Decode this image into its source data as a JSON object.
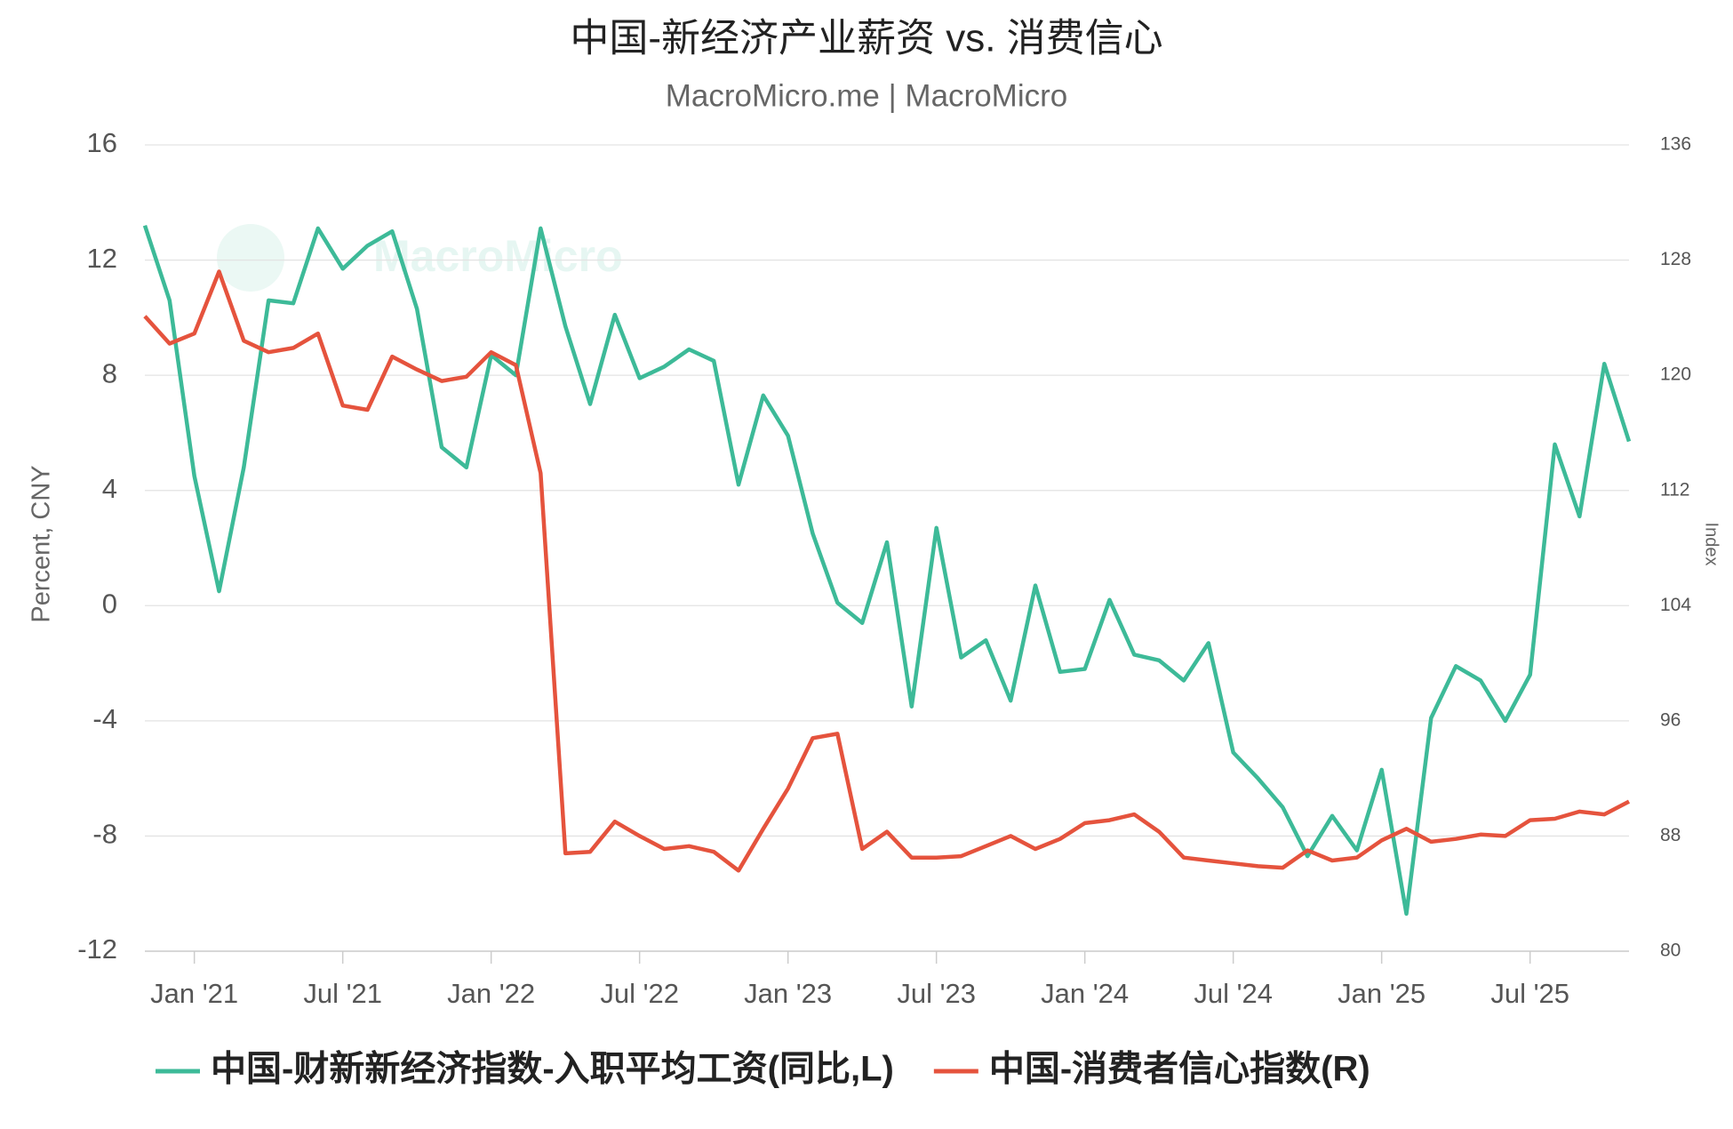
{
  "chart_data": {
    "type": "line",
    "title": "中国-新经济产业薪资 vs. 消费信心",
    "subtitle": "MacroMicro.me | MacroMicro",
    "watermark": "MacroMicro",
    "y_label": "Percent, CNY",
    "y2_label": "Index",
    "categories": [
      null,
      null,
      "Jan '21",
      null,
      null,
      null,
      null,
      null,
      "Jul '21",
      null,
      null,
      null,
      null,
      null,
      "Jan '22",
      null,
      null,
      null,
      null,
      null,
      "Jul '22",
      null,
      null,
      null,
      null,
      null,
      "Jan '23",
      null,
      null,
      null,
      null,
      null,
      "Jul '23",
      null,
      null,
      null,
      null,
      null,
      "Jan '24",
      null,
      null,
      null,
      null,
      null,
      "Jul '24",
      null,
      null,
      null,
      null,
      null,
      "Jan '25",
      null,
      null,
      null,
      null,
      null,
      "Jul '25",
      null,
      null,
      null,
      null
    ],
    "series": [
      {
        "name": "中国-财新新经济指数-入职平均工资(同比,L)",
        "color": "#3dba98",
        "axis": "y",
        "values": [
          13.2,
          10.6,
          4.5,
          0.5,
          4.8,
          10.6,
          10.5,
          13.1,
          11.7,
          12.5,
          13.0,
          10.3,
          5.5,
          4.8,
          8.7,
          8.0,
          13.1,
          9.7,
          7.0,
          10.1,
          7.9,
          8.3,
          8.9,
          8.5,
          4.2,
          7.3,
          5.9,
          2.5,
          0.1,
          -0.6,
          2.2,
          -3.5,
          2.7,
          -1.8,
          -1.2,
          -3.3,
          0.7,
          -2.3,
          -2.2,
          0.2,
          -1.7,
          -1.9,
          -2.6,
          -1.3,
          -5.1,
          -6.0,
          -7.0,
          -8.7,
          -7.3,
          -8.5,
          -5.7,
          -10.7,
          -3.9,
          -2.1,
          -2.6,
          -4.0,
          -2.4,
          5.6,
          3.1,
          8.4,
          5.7
        ]
      },
      {
        "name": "中国-消费者信心指数(R)",
        "color": "#e5533d",
        "axis": "y2",
        "values": [
          124.1,
          122.2,
          122.9,
          127.2,
          122.4,
          121.6,
          121.9,
          122.9,
          117.9,
          117.6,
          121.3,
          120.4,
          119.6,
          119.9,
          121.6,
          120.7,
          113.2,
          86.8,
          86.9,
          89.0,
          88.0,
          87.1,
          87.3,
          86.9,
          85.6,
          88.5,
          91.3,
          94.8,
          95.1,
          87.1,
          88.3,
          86.5,
          86.5,
          86.6,
          87.3,
          88.0,
          87.1,
          87.8,
          88.9,
          89.1,
          89.5,
          88.3,
          86.5,
          86.3,
          86.1,
          85.9,
          85.8,
          87.0,
          86.3,
          86.5,
          87.7,
          88.5,
          87.6,
          87.8,
          88.1,
          88.0,
          89.1,
          89.2,
          89.7,
          89.5,
          90.4
        ]
      }
    ],
    "ylim": [
      -12,
      16
    ],
    "yticks": [
      -12,
      -8,
      -4,
      0,
      4,
      8,
      12,
      16
    ],
    "y2lim": [
      80,
      136
    ],
    "y2ticks": [
      80,
      88,
      96,
      104,
      112,
      120,
      128,
      136
    ],
    "grid": true,
    "legend": "bottom"
  }
}
